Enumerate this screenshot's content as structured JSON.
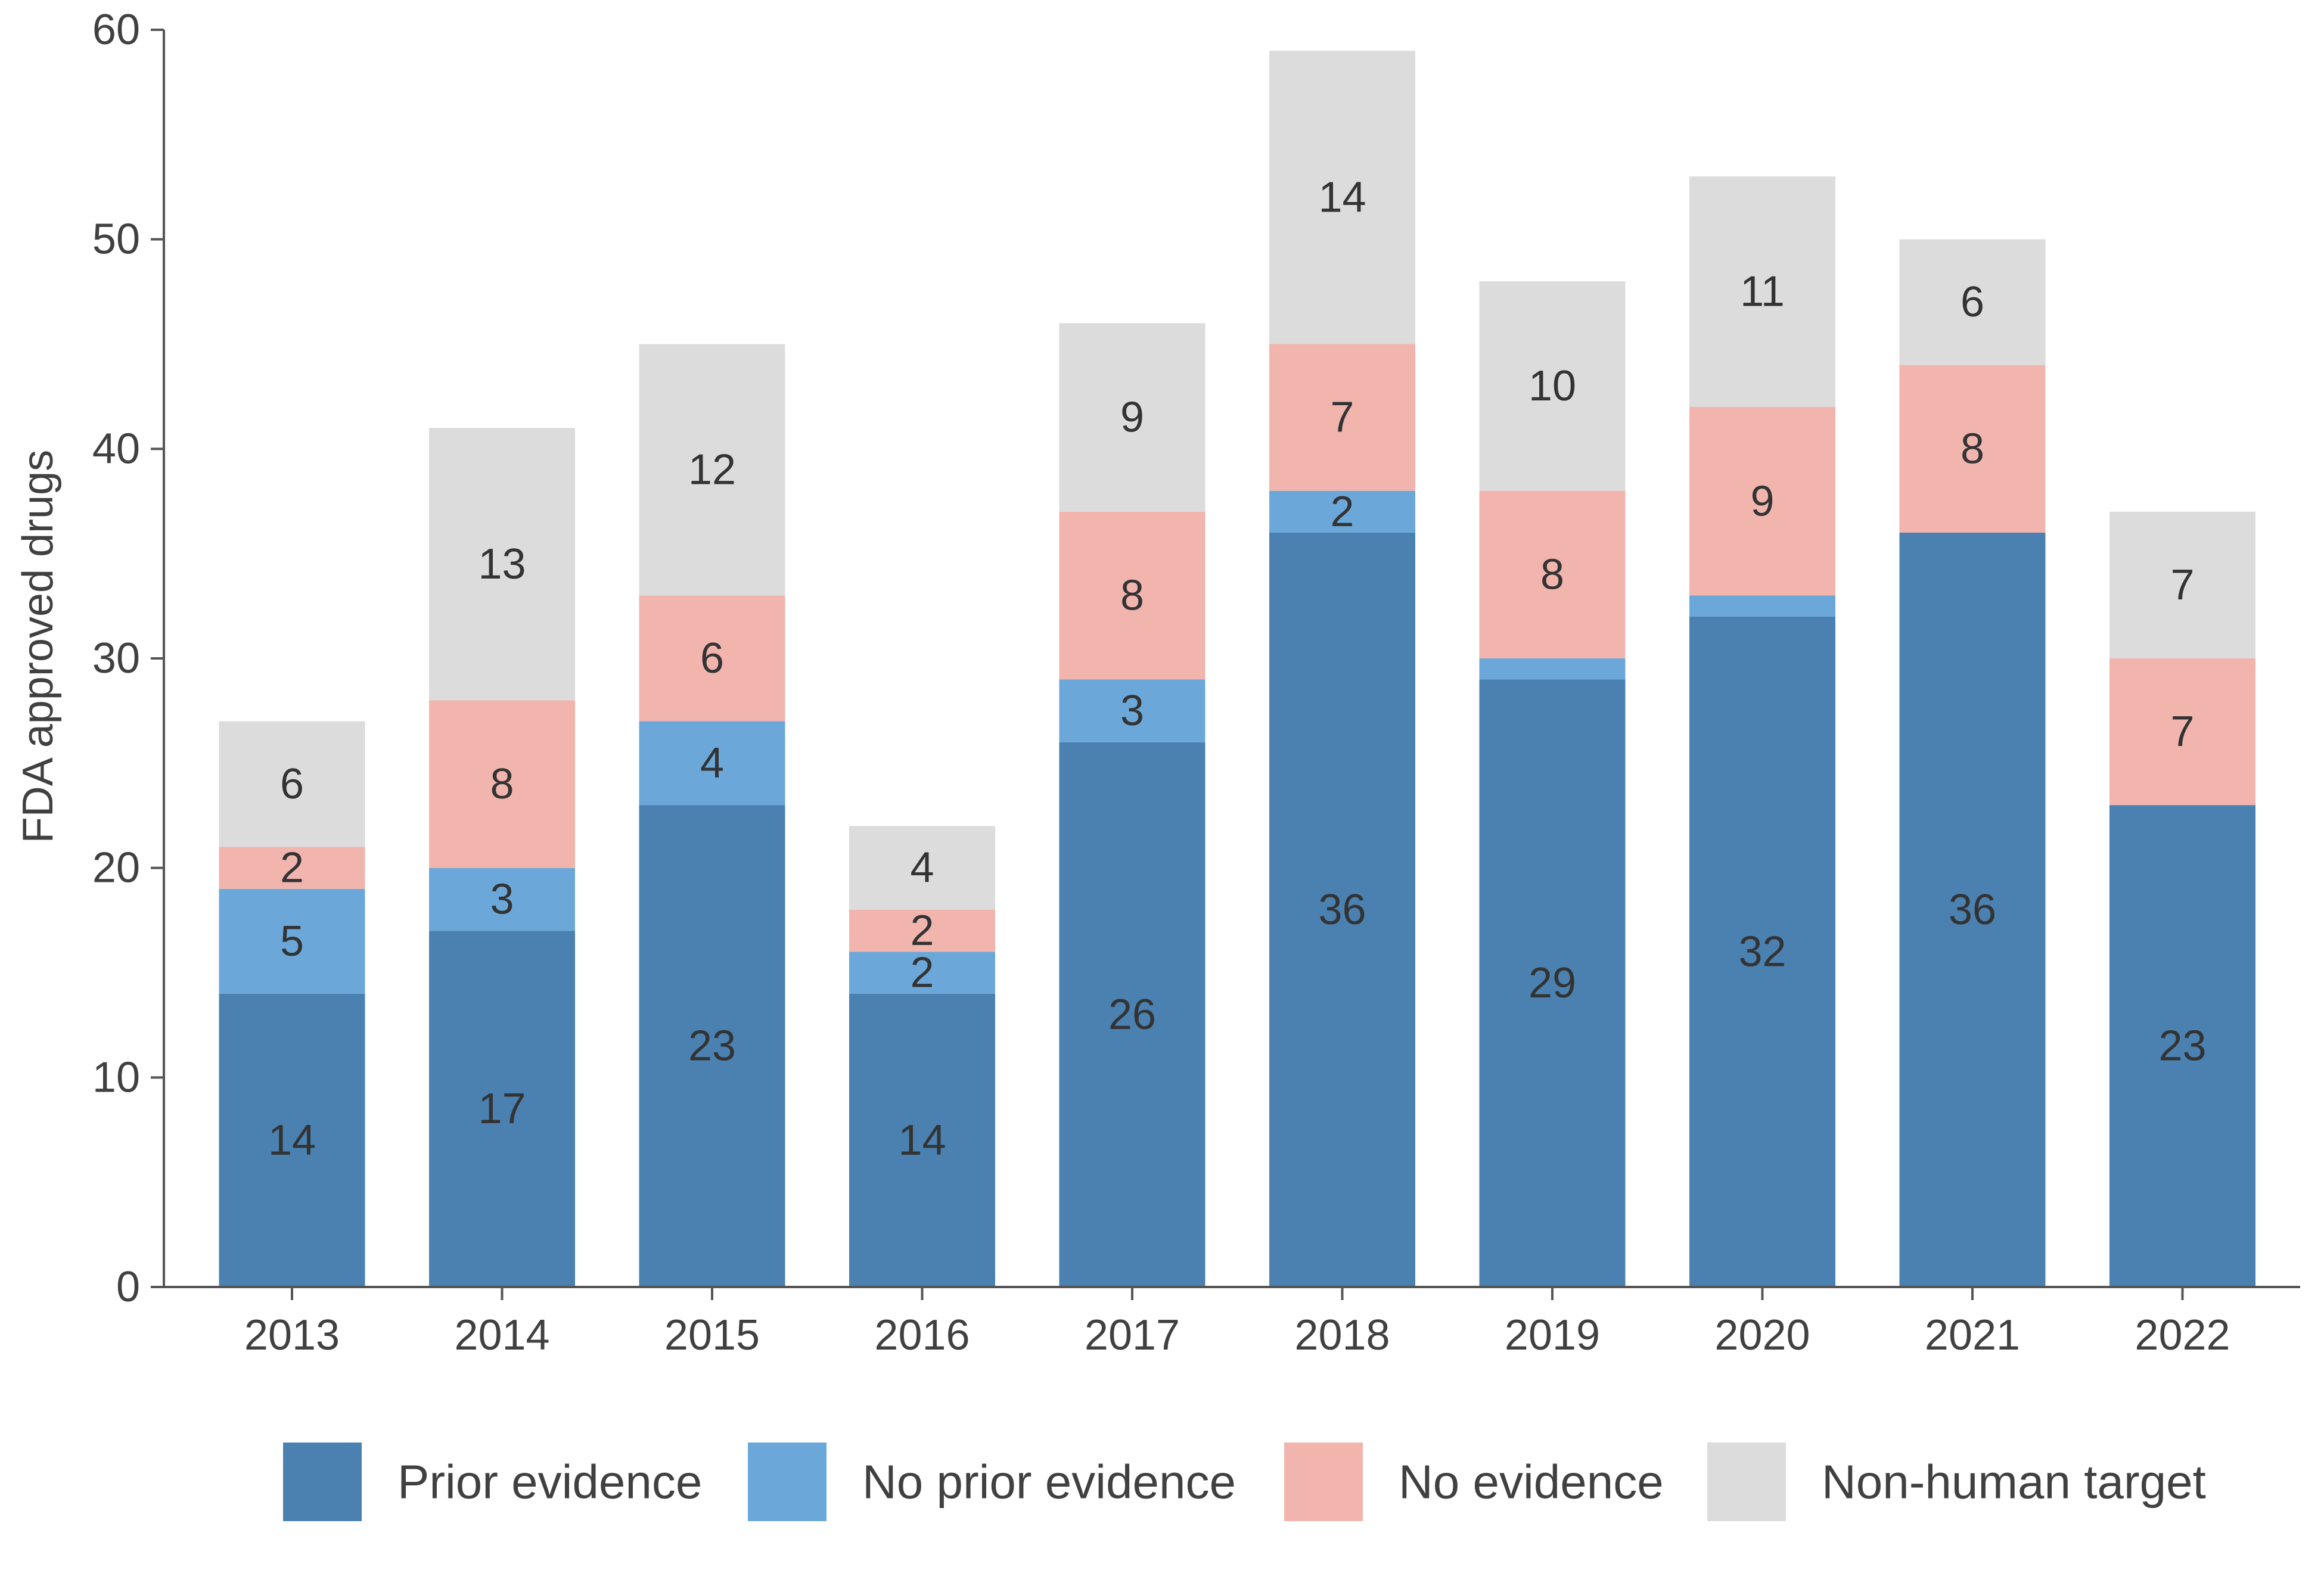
{
  "chart_data": {
    "type": "bar",
    "stacked": true,
    "title": "",
    "xlabel": "",
    "ylabel": "FDA approved drugs",
    "ylim": [
      0,
      60
    ],
    "yticks": [
      0,
      10,
      20,
      30,
      40,
      50,
      60
    ],
    "grid": false,
    "legend_position": "bottom",
    "categories": [
      "2013",
      "2014",
      "2015",
      "2016",
      "2017",
      "2018",
      "2019",
      "2020",
      "2021",
      "2022"
    ],
    "series": [
      {
        "name": "Prior evidence",
        "color": "#4a81b0",
        "values": [
          14,
          17,
          23,
          14,
          26,
          36,
          29,
          32,
          36,
          23
        ],
        "labels": [
          "14",
          "17",
          "23",
          "14",
          "26",
          "36",
          "29",
          "32",
          "36",
          "23"
        ]
      },
      {
        "name": "No prior evidence",
        "color": "#6ba8d9",
        "values": [
          5,
          3,
          4,
          2,
          3,
          2,
          1,
          1,
          0,
          0
        ],
        "labels": [
          "5",
          "3",
          "4",
          "2",
          "3",
          "2",
          "",
          "",
          "",
          ""
        ]
      },
      {
        "name": "No evidence",
        "color": "#f1b5ae",
        "values": [
          2,
          8,
          6,
          2,
          8,
          7,
          8,
          9,
          8,
          7
        ],
        "labels": [
          "2",
          "8",
          "6",
          "2",
          "8",
          "7",
          "8",
          "9",
          "8",
          "7"
        ]
      },
      {
        "name": "Non-human target",
        "color": "#dcdcdc",
        "values": [
          6,
          13,
          12,
          4,
          9,
          14,
          10,
          11,
          6,
          7
        ],
        "labels": [
          "6",
          "13",
          "12",
          "4",
          "9",
          "14",
          "10",
          "11",
          "6",
          "7"
        ]
      }
    ]
  }
}
